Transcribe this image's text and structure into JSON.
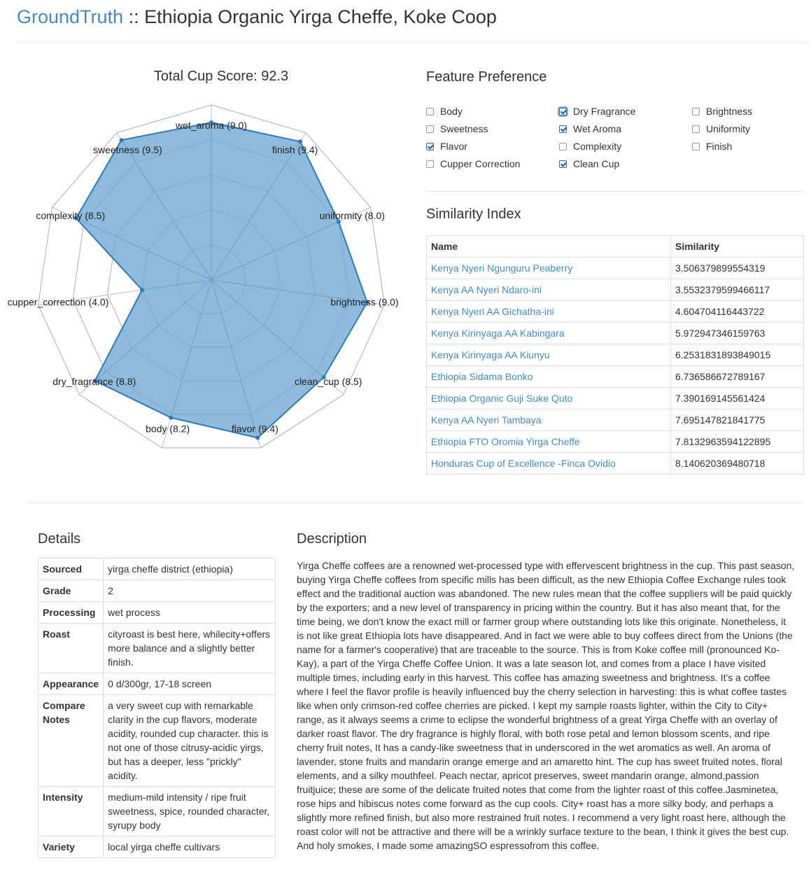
{
  "header": {
    "brand": "GroundTruth",
    "separator": " :: ",
    "title": "Ethiopia Organic Yirga Cheffe, Koke Coop"
  },
  "chart_title": "Total Cup Score: 92.3",
  "chart_data": {
    "type": "radar",
    "title": "Total Cup Score: 92.3",
    "axis_max": 10,
    "rings": 5,
    "categories": [
      "wet_aroma",
      "finish",
      "uniformity",
      "brightness",
      "clean_cup",
      "flavor",
      "body",
      "dry_fragrance",
      "cupper_correction",
      "complexity",
      "sweetness"
    ],
    "values": [
      9.0,
      9.4,
      8.0,
      9.0,
      8.5,
      9.4,
      8.2,
      8.8,
      4.0,
      8.5,
      9.5
    ],
    "labels": [
      "wet_aroma (9.0)",
      "finish (9.4)",
      "uniformity (8.0)",
      "brightness (9.0)",
      "clean_cup (8.5)",
      "flavor (9.4)",
      "body (8.2)",
      "dry_fragrance (8.8)",
      "cupper_correction (4.0)",
      "complexity (8.5)",
      "sweetness (9.5)"
    ],
    "fill_color": "#8ab6da",
    "stroke_color": "#2b7bbd"
  },
  "feature_preference": {
    "title": "Feature Preference",
    "items": [
      {
        "label": "Body",
        "checked": false
      },
      {
        "label": "Sweetness",
        "checked": false
      },
      {
        "label": "Flavor",
        "checked": true
      },
      {
        "label": "Cupper Correction",
        "checked": false
      },
      {
        "label": "Dry Fragrance",
        "checked": true
      },
      {
        "label": "Wet Aroma",
        "checked": true
      },
      {
        "label": "Complexity",
        "checked": false
      },
      {
        "label": "Clean Cup",
        "checked": true
      },
      {
        "label": "Brightness",
        "checked": false
      },
      {
        "label": "Uniformity",
        "checked": false
      },
      {
        "label": "Finish",
        "checked": false
      }
    ]
  },
  "similarity": {
    "title": "Similarity Index",
    "columns": [
      "Name",
      "Similarity"
    ],
    "rows": [
      {
        "name": "Kenya Nyeri Ngunguru Peaberry",
        "value": "3.506379899554319"
      },
      {
        "name": "Kenya AA Nyeri Ndaro-ini",
        "value": "3.5532379599466117"
      },
      {
        "name": "Kenya Nyeri AA Gichatha-ini",
        "value": "4.604704116443722"
      },
      {
        "name": "Kenya Kirinyaga AA Kabingara",
        "value": "5.972947346159763"
      },
      {
        "name": "Kenya Kirinyaga AA Kiunyu",
        "value": "6.2531831893849015"
      },
      {
        "name": "Ethiopia Sidama Bonko",
        "value": "6.736586672789167"
      },
      {
        "name": "Ethiopia Organic Guji Suke Quto",
        "value": "7.390169145561424"
      },
      {
        "name": "Kenya AA Nyeri Tambaya",
        "value": "7.695147821841775"
      },
      {
        "name": "Ethiopia FTO Oromia Yirga Cheffe",
        "value": "7.8132963594122895"
      },
      {
        "name": "Honduras Cup of Excellence -Finca Ovidio",
        "value": "8.140620369480718"
      }
    ]
  },
  "details": {
    "title": "Details",
    "rows": [
      {
        "key": "Sourced",
        "value": "yirga cheffe district (ethiopia)"
      },
      {
        "key": "Grade",
        "value": "2"
      },
      {
        "key": "Processing",
        "value": "wet process"
      },
      {
        "key": "Roast",
        "value": "cityroast is best here, whilecity+offers more balance and a slightly better finish."
      },
      {
        "key": "Appearance",
        "value": "0 d/300gr, 17-18 screen"
      },
      {
        "key": "Compare Notes",
        "value": "a very sweet cup with remarkable clarity in the cup flavors, moderate acidity, rounded cup character. this is not one of those citrusy-acidic yirgs, but has a deeper, less \"prickly\" acidity."
      },
      {
        "key": "Intensity",
        "value": "medium-mild intensity / ripe fruit sweetness, spice, rounded character, syrupy body"
      },
      {
        "key": "Variety",
        "value": "local yirga cheffe cultivars"
      }
    ]
  },
  "description": {
    "title": "Description",
    "text": "Yirga Cheffe coffees are a renowned wet-processed type with effervescent brightness in the cup. This past season, buying Yirga Cheffe coffees from specific mills has been difficult, as the new Ethiopia Coffee Exchange rules took effect and the traditional auction was abandoned. The new rules mean that the coffee suppliers will be paid quickly by the exporters; and a new level of transparency in pricing within the country. But it has also meant that, for the time being, we don't know the exact mill or farmer group where outstanding lots like this originate. Nonetheless, it is not like great Ethiopia lots have disappeared. And in fact we were able to buy coffees direct from the Unions (the name for a farmer's cooperative) that are traceable to the source. This is from Koke coffee mill (pronounced Ko-Kay), a part of the Yirga Cheffe Coffee Union. It was a late season lot, and comes from a place I have visited multiple times, including early in this harvest. This coffee has amazing sweetness and brightness. It's a coffee where I feel the flavor profile is heavily influenced buy the cherry selection in harvesting: this is what coffee tastes like when only crimson-red coffee cherries are picked. I kept my sample roasts lighter, within the City to City+ range, as it always seems a crime to eclipse the wonderful brightness of a great Yirga Cheffe with an overlay of darker roast flavor. The dry fragrance is highly floral, with both rose petal and lemon blossom scents, and ripe cherry fruit notes, It has a candy-like sweetness that in underscored in the wet aromatics as well. An aroma of lavender, stone fruits and mandarin orange emerge and an amaretto hint. The cup has sweet fruited notes, floral elements, and a silky mouthfeel. Peach nectar, apricot preserves, sweet mandarin orange, almond,passion fruitjuice; these are some of the delicate fruited notes that come from the lighter roast of this coffee.Jasminetea, rose hips and hibiscus notes come forward as the cup cools. City+ roast has a more silky body, and perhaps a slightly more refined finish, but also more restrained fruit notes. I recommend a very light roast here, although the roast color will not be attractive and there will be a wrinkly surface texture to the bean, I think it gives the best cup. And holy smokes, I made some amazingSO espressofrom this coffee."
  }
}
